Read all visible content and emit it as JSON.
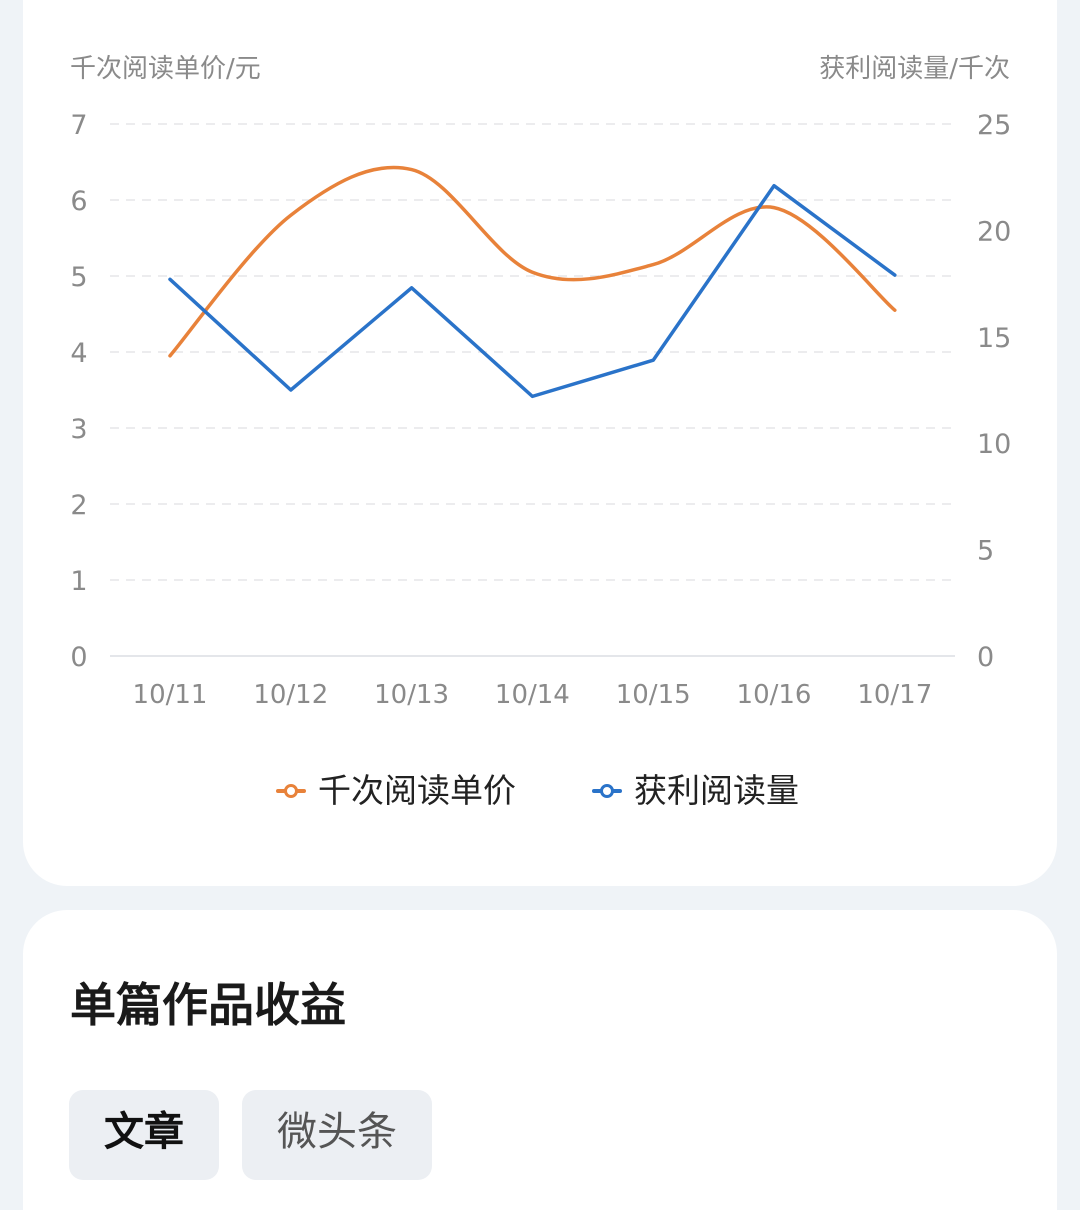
{
  "chart_data": {
    "type": "line",
    "categories": [
      "10/11",
      "10/12",
      "10/13",
      "10/14",
      "10/15",
      "10/16",
      "10/17"
    ],
    "left_axis": {
      "label": "千次阅读单价/元",
      "range": [
        0,
        7
      ],
      "ticks": [
        "0",
        "1",
        "2",
        "3",
        "4",
        "5",
        "6",
        "7"
      ]
    },
    "right_axis": {
      "label": "获利阅读量/千次",
      "range": [
        0,
        25
      ],
      "ticks": [
        "0",
        "5",
        "10",
        "15",
        "20",
        "25"
      ]
    },
    "series": [
      {
        "name": "千次阅读单价",
        "axis": "left",
        "color": "#e8823a",
        "smooth": true,
        "values": [
          3.95,
          5.8,
          6.4,
          5.05,
          5.15,
          5.9,
          4.55
        ]
      },
      {
        "name": "获利阅读量",
        "axis": "right",
        "color": "#2a73c9",
        "smooth": false,
        "values": [
          17.7,
          12.5,
          17.3,
          12.2,
          13.9,
          22.1,
          17.9
        ]
      }
    ],
    "grid": true,
    "legend_position": "bottom"
  },
  "section": {
    "title": "单篇作品收益"
  },
  "tabs": [
    {
      "label": "文章",
      "active": true
    },
    {
      "label": "微头条",
      "active": false
    }
  ]
}
